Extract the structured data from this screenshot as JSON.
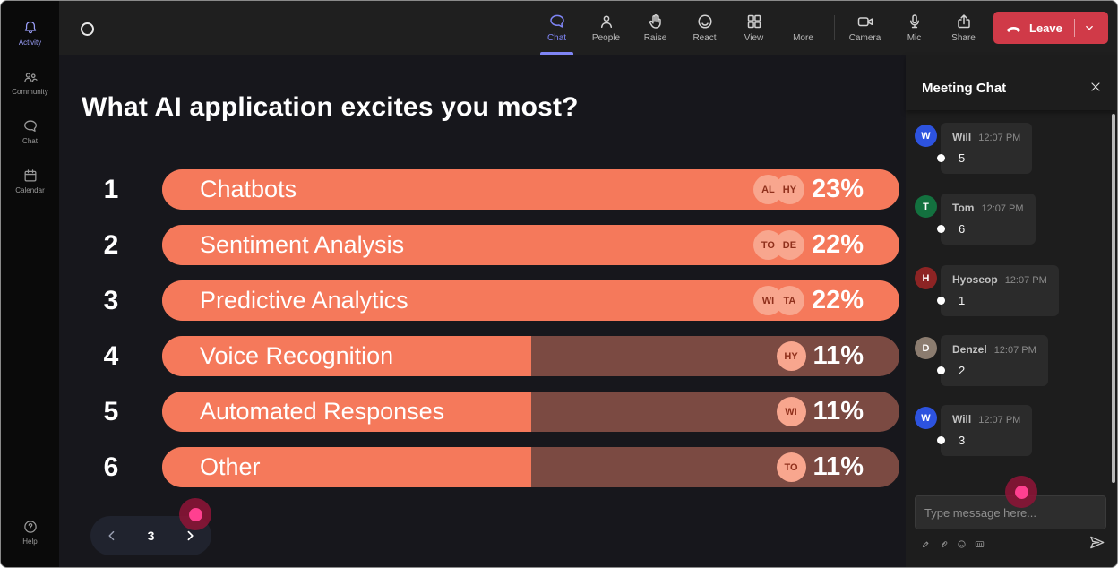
{
  "topbar": {
    "items": [
      {
        "label": "Chat",
        "active": true
      },
      {
        "label": "People",
        "active": false
      },
      {
        "label": "Raise",
        "active": false
      },
      {
        "label": "React",
        "active": false
      },
      {
        "label": "View",
        "active": false
      },
      {
        "label": "More",
        "active": false
      }
    ],
    "devices": [
      {
        "label": "Camera"
      },
      {
        "label": "Mic"
      },
      {
        "label": "Share"
      }
    ],
    "leave_label": "Leave"
  },
  "sidebar": {
    "items": [
      {
        "label": "Activity",
        "active": true
      },
      {
        "label": "Community",
        "active": false
      },
      {
        "label": "Chat",
        "active": false
      },
      {
        "label": "Calendar",
        "active": false
      }
    ],
    "help_label": "Help"
  },
  "poll": {
    "title": "What AI application excites you most?",
    "bar_scale_max_pct": 22,
    "items": [
      {
        "rank": "1",
        "label": "Chatbots",
        "pct": 23,
        "pct_label": "23%",
        "voters": [
          "AL",
          "HY"
        ]
      },
      {
        "rank": "2",
        "label": "Sentiment Analysis",
        "pct": 22,
        "pct_label": "22%",
        "voters": [
          "TO",
          "DE"
        ]
      },
      {
        "rank": "3",
        "label": "Predictive Analytics",
        "pct": 22,
        "pct_label": "22%",
        "voters": [
          "WI",
          "TA"
        ]
      },
      {
        "rank": "4",
        "label": "Voice Recognition",
        "pct": 11,
        "pct_label": "11%",
        "voters": [
          "HY"
        ]
      },
      {
        "rank": "5",
        "label": "Automated Responses",
        "pct": 11,
        "pct_label": "11%",
        "voters": [
          "WI"
        ]
      },
      {
        "rank": "6",
        "label": "Other",
        "pct": 11,
        "pct_label": "11%",
        "voters": [
          "TO"
        ]
      }
    ],
    "pagination": {
      "current_page": "3"
    }
  },
  "chat_panel": {
    "title": "Meeting Chat",
    "messages": [
      {
        "initial": "W",
        "avatar_color": "#2d53df",
        "name": "Will",
        "time": "12:07 PM",
        "text": "5"
      },
      {
        "initial": "T",
        "avatar_color": "#13713f",
        "name": "Tom",
        "time": "12:07 PM",
        "text": "6"
      },
      {
        "initial": "H",
        "avatar_color": "#8d2424",
        "name": "Hyoseop",
        "time": "12:07 PM",
        "text": "1"
      },
      {
        "initial": "D",
        "avatar_color": "#8b7c6f",
        "name": "Denzel",
        "time": "12:07 PM",
        "text": "2"
      },
      {
        "initial": "W",
        "avatar_color": "#2d53df",
        "name": "Will",
        "time": "12:07 PM",
        "text": "3"
      }
    ],
    "input_placeholder": "Type message here..."
  },
  "colors": {
    "accent_blue": "#7f85f5",
    "leave_red": "#d03a48",
    "bar_fill": "#f5795b",
    "bar_track": "#7b4a42",
    "voter_chip": "#f8a68e",
    "cursor_pink": "#ff4090"
  }
}
